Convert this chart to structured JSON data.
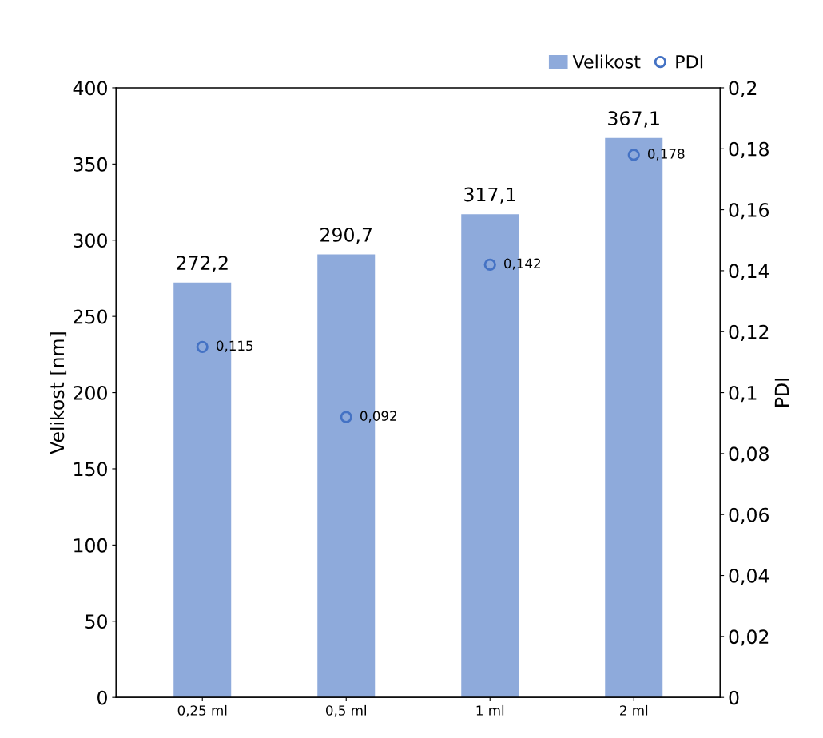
{
  "chart_data": {
    "type": "bar",
    "ylabel": "Velikost [nm]",
    "y2label": "PDI",
    "categories": [
      "0,25 ml",
      "0,5 ml",
      "1 ml",
      "2 ml"
    ],
    "series": [
      {
        "name": "Velikost",
        "color": "#8eaadb",
        "values": [
          272.2,
          290.7,
          317.1,
          367.1
        ],
        "value_labels": [
          "272,2",
          "290,7",
          "317,1",
          "367,1"
        ]
      },
      {
        "name": "PDI",
        "type": "scatter",
        "axis": "y2",
        "color": "#4472c4",
        "values": [
          0.115,
          0.092,
          0.142,
          0.178
        ],
        "value_labels": [
          "0,115",
          "0,092",
          "0,142",
          "0,178"
        ]
      }
    ],
    "ylim": [
      0,
      400
    ],
    "yticks": [
      0,
      50,
      100,
      150,
      200,
      250,
      300,
      350,
      400
    ],
    "y2lim": [
      0,
      0.2
    ],
    "y2ticks": [
      0,
      {
        "value": 0.02,
        "label": "0,02"
      },
      {
        "value": 0.04,
        "label": "0,04"
      },
      {
        "value": 0.06,
        "label": "0,06"
      },
      {
        "value": 0.08,
        "label": "0,08"
      },
      {
        "value": 0.1,
        "label": "0,1"
      },
      {
        "value": 0.12,
        "label": "0,12"
      },
      {
        "value": 0.14,
        "label": "0,14"
      },
      {
        "value": 0.16,
        "label": "0,16"
      },
      {
        "value": 0.18,
        "label": "0,18"
      },
      {
        "value": 0.2,
        "label": "0,2"
      }
    ],
    "marker": "circle",
    "grid": false,
    "legend": "top right"
  }
}
